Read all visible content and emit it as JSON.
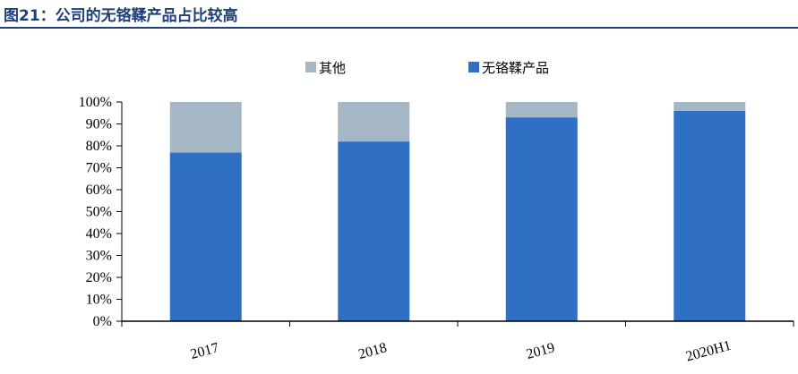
{
  "header": {
    "title": "图21：公司的无铬鞣产品占比较高"
  },
  "chart_data": {
    "type": "bar",
    "stacked": true,
    "categories": [
      "2017",
      "2018",
      "2019",
      "2020H1"
    ],
    "series": [
      {
        "name": "无铬鞣产品",
        "values": [
          77,
          82,
          93,
          96
        ],
        "color": "#3070c4"
      },
      {
        "name": "其他",
        "values": [
          23,
          18,
          7,
          4
        ],
        "color": "#a5b7c4"
      }
    ],
    "legend_order": [
      "其他",
      "无铬鞣产品"
    ],
    "ylim": [
      0,
      100
    ],
    "yticks": [
      "0%",
      "10%",
      "20%",
      "30%",
      "40%",
      "50%",
      "60%",
      "70%",
      "80%",
      "90%",
      "100%"
    ],
    "legend_position": "top",
    "grid": false
  }
}
